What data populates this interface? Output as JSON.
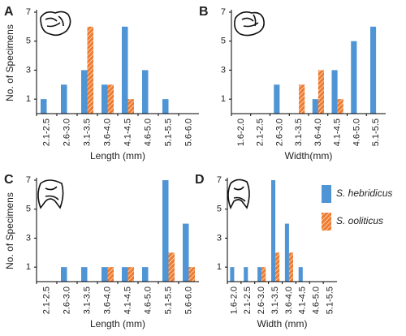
{
  "chart_data": [
    {
      "type": "bar",
      "label": "A",
      "ylabel": "No. of Specimens",
      "xlabel": "Length (mm)",
      "categories": [
        "2.1-2.5",
        "2.6-3.0",
        "3.1-3.5",
        "3.6-4.0",
        "4.1-4.5",
        "4.6-5.0",
        "5.1-5.5",
        "5.6-6.0"
      ],
      "series": [
        {
          "name": "S. hebridicus",
          "color": "#4f94d4",
          "values": [
            1,
            2,
            3,
            2,
            6,
            3,
            1,
            0
          ]
        },
        {
          "name": "S. ooliticus",
          "color": "#ee7c30",
          "values": [
            0,
            0,
            6,
            2,
            1,
            0,
            0,
            0
          ]
        }
      ],
      "ylim": [
        0,
        7
      ],
      "yticks": [
        1,
        3,
        5,
        7
      ]
    },
    {
      "type": "bar",
      "label": "B",
      "xlabel": "Width(mm)",
      "categories": [
        "1.6-2.0",
        "2.1-2.5",
        "2.6-3.0",
        "3.1-3.5",
        "3.6-4.0",
        "4.1-4.5",
        "4.6-5.0",
        "5.1-5.5"
      ],
      "series": [
        {
          "name": "S. hebridicus",
          "color": "#4f94d4",
          "values": [
            0,
            0,
            2,
            0,
            1,
            3,
            5,
            6
          ]
        },
        {
          "name": "S. ooliticus",
          "color": "#ee7c30",
          "values": [
            0,
            0,
            0,
            2,
            3,
            1,
            0,
            0
          ]
        }
      ],
      "ylim": [
        0,
        7
      ],
      "yticks": [
        1,
        3,
        5,
        7
      ]
    },
    {
      "type": "bar",
      "label": "C",
      "ylabel": "No. of Specimens",
      "xlabel": "Length (mm)",
      "categories": [
        "2.1-2.5",
        "2.6-3.0",
        "3.1-3.5",
        "3.6-4.0",
        "4.1-4.5",
        "4.6-5.0",
        "5.1-5.5",
        "5.6-6.0"
      ],
      "series": [
        {
          "name": "S. hebridicus",
          "color": "#4f94d4",
          "values": [
            0,
            1,
            1,
            1,
            1,
            1,
            7,
            4
          ]
        },
        {
          "name": "S. ooliticus",
          "color": "#ee7c30",
          "values": [
            0,
            0,
            0,
            1,
            1,
            0,
            2,
            1
          ]
        }
      ],
      "ylim": [
        0,
        7
      ],
      "yticks": [
        1,
        3,
        5,
        7
      ]
    },
    {
      "type": "bar",
      "label": "D",
      "xlabel": "Width (mm)",
      "legend": "right",
      "categories": [
        "1.6-2.0",
        "2.1-2.5",
        "2.6-3.0",
        "3.1-3.5",
        "3.6-4.0",
        "4.1-4.5",
        "4.6-5.0",
        "5.1-5.5"
      ],
      "series": [
        {
          "name": "S. hebridicus",
          "color": "#4f94d4",
          "values": [
            1,
            1,
            1,
            7,
            4,
            1,
            0,
            0
          ]
        },
        {
          "name": "S. ooliticus",
          "color": "#ee7c30",
          "values": [
            0,
            0,
            1,
            2,
            2,
            0,
            0,
            0
          ]
        }
      ],
      "ylim": [
        0,
        7
      ],
      "yticks": [
        1,
        3,
        5,
        7
      ]
    }
  ]
}
